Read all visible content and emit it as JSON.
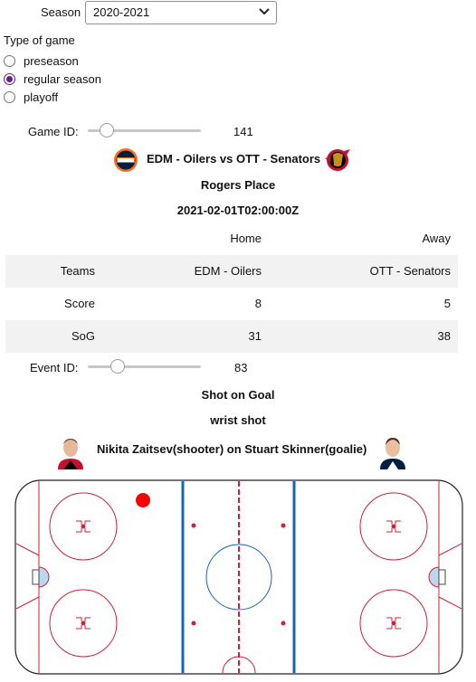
{
  "season": {
    "label": "Season",
    "selected": "2020-2021"
  },
  "game_type": {
    "label": "Type of game",
    "options": [
      "preseason",
      "regular season",
      "playoff"
    ],
    "selected": "regular season"
  },
  "game_slider": {
    "label": "Game ID:",
    "value": "141"
  },
  "matchup": {
    "title": "EDM - Oilers vs OTT - Senators",
    "venue": "Rogers Place",
    "datetime": "2021-02-01T02:00:00Z"
  },
  "logos": {
    "home": "oilers-logo",
    "away": "senators-logo"
  },
  "table": {
    "headers": [
      "",
      "Home",
      "Away"
    ],
    "rows": [
      [
        "Teams",
        "EDM - Oilers",
        "OTT - Senators"
      ],
      [
        "Score",
        "8",
        "5"
      ],
      [
        "SoG",
        "31",
        "38"
      ]
    ]
  },
  "event_slider": {
    "label": "Event ID:",
    "value": "83"
  },
  "event": {
    "type": "Shot on Goal",
    "shot_type": "wrist shot",
    "description": "Nikita Zaitsev(shooter) on Stuart Skinner(goalie)"
  },
  "colors": {
    "accent": "#6a1b9a",
    "shot_marker": "#ff0000",
    "rink_red": "#d0203a",
    "rink_blue": "#1565c0"
  }
}
